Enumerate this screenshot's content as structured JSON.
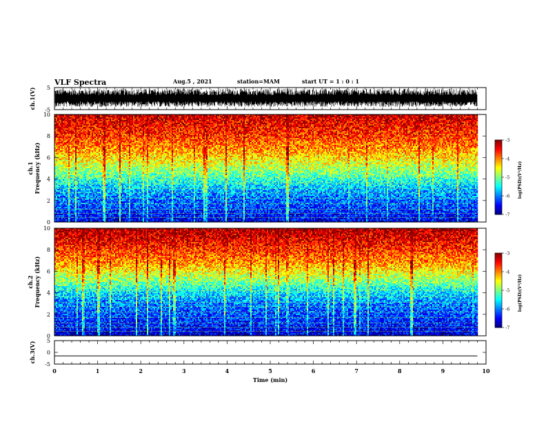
{
  "header": {
    "title": "VLF Spectra",
    "date": "Aug.5 , 2021",
    "station": "station=MAM",
    "start": "start UT =  1 : 0  : 1"
  },
  "chart_data": [
    {
      "type": "line",
      "panel": "ch1_waveform",
      "ylabel": "ch.1(V)",
      "ylim": [
        -5,
        5
      ],
      "y_ticklabels": [
        "5",
        "-5"
      ],
      "xlim": [
        0,
        10
      ],
      "description_of_trace": "dense broadband noise filling most of the range",
      "trace_envelope": {
        "x": [
          0,
          9.8
        ],
        "ymin": -3.8,
        "ymax": 4.5
      }
    },
    {
      "type": "heatmap",
      "panel": "ch1_spectrogram",
      "ylabel_top": "ch.1",
      "ylabel": "Frequency (kHz)",
      "ylim": [
        0,
        10
      ],
      "y_ticks": [
        0,
        2,
        4,
        6,
        8,
        10
      ],
      "xlim": [
        0,
        10
      ],
      "data_extent_min": 9.8,
      "colorbar": {
        "label": "log(PSD)(V²/Hz)",
        "range": [
          -7,
          -3
        ],
        "ticks": [
          "-3",
          "-4",
          "-5",
          "-6",
          "-7"
        ]
      },
      "profile": {
        "freq_khz": [
          0,
          1,
          2,
          3,
          4,
          5,
          6,
          7,
          8,
          9,
          10
        ],
        "log_psd": [
          -6.6,
          -6.3,
          -6.1,
          -5.8,
          -5.3,
          -4.8,
          -4.4,
          -4.0,
          -3.7,
          -3.5,
          -3.3
        ]
      }
    },
    {
      "type": "heatmap",
      "panel": "ch2_spectrogram",
      "ylabel_top": "ch.2",
      "ylabel": "Frequency (kHz)",
      "ylim": [
        0,
        10
      ],
      "y_ticks": [
        0,
        2,
        4,
        6,
        8,
        10
      ],
      "xlim": [
        0,
        10
      ],
      "data_extent_min": 9.8,
      "colorbar": {
        "label": "log(PSD)(V²/Hz)",
        "range": [
          -7,
          -3
        ],
        "ticks": [
          "-3",
          "-4",
          "-5",
          "-6",
          "-7"
        ]
      },
      "profile": {
        "freq_khz": [
          0,
          1,
          2,
          3,
          4,
          5,
          6,
          7,
          8,
          9,
          10
        ],
        "log_psd": [
          -6.7,
          -6.4,
          -6.2,
          -6.0,
          -5.6,
          -5.0,
          -4.5,
          -4.0,
          -3.7,
          -3.4,
          -3.2
        ]
      }
    },
    {
      "type": "line",
      "panel": "ch3_waveform",
      "ylabel": "ch.3(V)",
      "ylim": [
        -5,
        5
      ],
      "y_ticklabels": [
        "5",
        "0",
        "-5"
      ],
      "xlim": [
        0,
        10
      ],
      "x": [
        0,
        9.8
      ],
      "y": [
        -1.5,
        -1.5
      ]
    }
  ],
  "xaxis": {
    "label": "Time (min)",
    "ticks": [
      "0",
      "1",
      "2",
      "3",
      "4",
      "5",
      "6",
      "7",
      "8",
      "9",
      "10"
    ]
  }
}
